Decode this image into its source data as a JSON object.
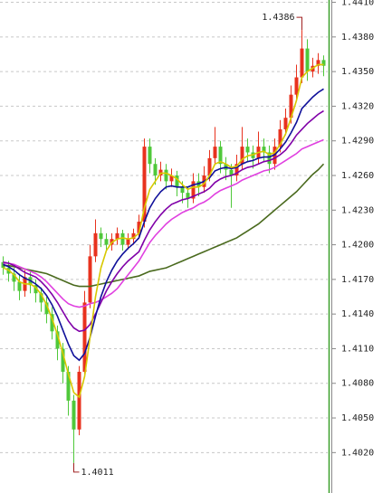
{
  "chart_data": {
    "type": "candlestick",
    "ylim": [
      1.3985,
      1.4412
    ],
    "yticks": [
      {
        "value": 1.441,
        "label": "1.4410"
      },
      {
        "value": 1.438,
        "label": "1.4380"
      },
      {
        "value": 1.435,
        "label": "1.4350"
      },
      {
        "value": 1.432,
        "label": "1.4320"
      },
      {
        "value": 1.429,
        "label": "1.4290"
      },
      {
        "value": 1.426,
        "label": "1.4260"
      },
      {
        "value": 1.423,
        "label": "1.4230"
      },
      {
        "value": 1.42,
        "label": "1.4200"
      },
      {
        "value": 1.417,
        "label": "1.4170"
      },
      {
        "value": 1.414,
        "label": "1.4140"
      },
      {
        "value": 1.411,
        "label": "1.4110"
      },
      {
        "value": 1.408,
        "label": "1.4080"
      },
      {
        "value": 1.405,
        "label": "1.4050"
      },
      {
        "value": 1.402,
        "label": "1.4020"
      }
    ],
    "grid": true,
    "up_color": "#e8321e",
    "down_color": "#4fc83a",
    "candles": {
      "open": [
        1.4185,
        1.418,
        1.4175,
        1.4168,
        1.416,
        1.4172,
        1.4165,
        1.4158,
        1.415,
        1.414,
        1.4125,
        1.411,
        1.409,
        1.4065,
        1.404,
        1.409,
        1.415,
        1.419,
        1.421,
        1.4205,
        1.42,
        1.4205,
        1.421,
        1.42,
        1.4205,
        1.421,
        1.422,
        1.4285,
        1.427,
        1.426,
        1.4265,
        1.4255,
        1.426,
        1.425,
        1.4245,
        1.424,
        1.4255,
        1.425,
        1.426,
        1.4275,
        1.4285,
        1.427,
        1.4265,
        1.426,
        1.427,
        1.4285,
        1.428,
        1.4275,
        1.4285,
        1.428,
        1.427,
        1.4285,
        1.43,
        1.431,
        1.433,
        1.4345,
        1.437,
        1.435,
        1.4355,
        1.436
      ],
      "high": [
        1.419,
        1.4186,
        1.418,
        1.4175,
        1.4178,
        1.4178,
        1.417,
        1.4163,
        1.4155,
        1.4146,
        1.413,
        1.4115,
        1.4095,
        1.407,
        1.4095,
        1.416,
        1.42,
        1.4222,
        1.4215,
        1.421,
        1.421,
        1.4215,
        1.4213,
        1.421,
        1.4214,
        1.4226,
        1.4292,
        1.4292,
        1.4275,
        1.4272,
        1.427,
        1.4266,
        1.4264,
        1.4255,
        1.425,
        1.4262,
        1.4262,
        1.4268,
        1.4282,
        1.4302,
        1.429,
        1.4276,
        1.427,
        1.4278,
        1.4302,
        1.4292,
        1.4286,
        1.4298,
        1.4292,
        1.4286,
        1.4292,
        1.4308,
        1.4318,
        1.4338,
        1.4356,
        1.4386,
        1.4378,
        1.4362,
        1.4366,
        1.4364
      ],
      "low": [
        1.4174,
        1.4168,
        1.416,
        1.4152,
        1.4155,
        1.4158,
        1.415,
        1.4142,
        1.4132,
        1.4118,
        1.41,
        1.408,
        1.4052,
        1.4011,
        1.4035,
        1.4085,
        1.4145,
        1.4185,
        1.4198,
        1.4195,
        1.4195,
        1.42,
        1.4195,
        1.4196,
        1.42,
        1.4205,
        1.4215,
        1.4262,
        1.4252,
        1.4255,
        1.4248,
        1.425,
        1.4242,
        1.4236,
        1.4232,
        1.4236,
        1.4242,
        1.4245,
        1.4255,
        1.427,
        1.4262,
        1.4256,
        1.4232,
        1.4255,
        1.4265,
        1.4272,
        1.4266,
        1.427,
        1.4272,
        1.4262,
        1.4265,
        1.428,
        1.4295,
        1.4305,
        1.4325,
        1.434,
        1.4342,
        1.4345,
        1.4348,
        1.4346
      ],
      "close": [
        1.418,
        1.4175,
        1.4168,
        1.416,
        1.4172,
        1.4165,
        1.4158,
        1.415,
        1.414,
        1.4125,
        1.411,
        1.409,
        1.4065,
        1.404,
        1.409,
        1.415,
        1.419,
        1.421,
        1.4205,
        1.42,
        1.4205,
        1.421,
        1.42,
        1.4205,
        1.421,
        1.422,
        1.4285,
        1.427,
        1.426,
        1.4265,
        1.4255,
        1.426,
        1.425,
        1.4245,
        1.424,
        1.4255,
        1.425,
        1.426,
        1.4275,
        1.4285,
        1.427,
        1.4265,
        1.426,
        1.427,
        1.4285,
        1.428,
        1.4275,
        1.4285,
        1.428,
        1.427,
        1.4285,
        1.43,
        1.431,
        1.433,
        1.4345,
        1.437,
        1.435,
        1.4355,
        1.436,
        1.4355
      ]
    },
    "lines": [
      {
        "color": "#4a6a1e",
        "values": [
          1.4182,
          1.4182,
          1.4181,
          1.418,
          1.4179,
          1.4178,
          1.4177,
          1.4176,
          1.4175,
          1.4173,
          1.4171,
          1.4169,
          1.4167,
          1.4165,
          1.4164,
          1.4164,
          1.4164,
          1.4165,
          1.4166,
          1.4167,
          1.4168,
          1.4169,
          1.417,
          1.4171,
          1.4172,
          1.4173,
          1.4175,
          1.4177,
          1.4178,
          1.4179,
          1.418,
          1.4182,
          1.4184,
          1.4186,
          1.4188,
          1.419,
          1.4192,
          1.4194,
          1.4196,
          1.4198,
          1.42,
          1.4202,
          1.4204,
          1.4206,
          1.4209,
          1.4212,
          1.4215,
          1.4218,
          1.4222,
          1.4226,
          1.423,
          1.4234,
          1.4238,
          1.4242,
          1.4246,
          1.4251,
          1.4256,
          1.4261,
          1.4265,
          1.427
        ]
      },
      {
        "color": "#e040e0",
        "values": [
          1.4184,
          1.4184,
          1.4183,
          1.4181,
          1.4179,
          1.4177,
          1.4175,
          1.4172,
          1.4168,
          1.4163,
          1.4158,
          1.4153,
          1.4149,
          1.4147,
          1.4146,
          1.4147,
          1.4149,
          1.415,
          1.4152,
          1.4155,
          1.4158,
          1.4162,
          1.4168,
          1.4174,
          1.418,
          1.4186,
          1.4194,
          1.4202,
          1.4208,
          1.4213,
          1.4218,
          1.4222,
          1.4225,
          1.4228,
          1.423,
          1.4232,
          1.4235,
          1.4237,
          1.424,
          1.4244,
          1.4247,
          1.4249,
          1.4251,
          1.4253,
          1.4256,
          1.4258,
          1.426,
          1.4262,
          1.4264,
          1.4265,
          1.4267,
          1.427,
          1.4273,
          1.4276,
          1.4279,
          1.4283,
          1.4285,
          1.4287,
          1.4289,
          1.4291
        ]
      },
      {
        "color": "#8000a8",
        "values": [
          1.4185,
          1.4184,
          1.4182,
          1.4179,
          1.4176,
          1.4174,
          1.4172,
          1.4168,
          1.4163,
          1.4157,
          1.415,
          1.4142,
          1.4134,
          1.4128,
          1.4125,
          1.4126,
          1.4131,
          1.414,
          1.415,
          1.416,
          1.4168,
          1.4175,
          1.4181,
          1.4186,
          1.419,
          1.4194,
          1.4204,
          1.4213,
          1.422,
          1.4226,
          1.4231,
          1.4235,
          1.4237,
          1.4239,
          1.424,
          1.4242,
          1.4244,
          1.4246,
          1.4249,
          1.4254,
          1.4257,
          1.4259,
          1.426,
          1.4262,
          1.4265,
          1.4267,
          1.4268,
          1.427,
          1.4272,
          1.4273,
          1.4275,
          1.4278,
          1.4282,
          1.4288,
          1.4295,
          1.43,
          1.4305,
          1.4309,
          1.4313,
          1.4316
        ]
      },
      {
        "color": "#10109a",
        "values": [
          1.4183,
          1.4181,
          1.4178,
          1.4174,
          1.4171,
          1.4169,
          1.4166,
          1.4162,
          1.4156,
          1.4148,
          1.4138,
          1.4126,
          1.4114,
          1.4104,
          1.41,
          1.4106,
          1.412,
          1.4138,
          1.4155,
          1.4168,
          1.4178,
          1.4186,
          1.4192,
          1.4197,
          1.4201,
          1.4206,
          1.422,
          1.4232,
          1.424,
          1.4246,
          1.425,
          1.4251,
          1.425,
          1.425,
          1.425,
          1.4252,
          1.4253,
          1.4255,
          1.4258,
          1.4264,
          1.4266,
          1.4267,
          1.4266,
          1.4267,
          1.427,
          1.4272,
          1.4273,
          1.4275,
          1.4276,
          1.4276,
          1.4278,
          1.4283,
          1.4289,
          1.4297,
          1.4306,
          1.4318,
          1.4323,
          1.4328,
          1.4332,
          1.4335
        ]
      },
      {
        "color": "#d8c800",
        "values": [
          1.418,
          1.4178,
          1.4174,
          1.4168,
          1.4166,
          1.4166,
          1.4163,
          1.4157,
          1.4148,
          1.4136,
          1.4122,
          1.4106,
          1.4088,
          1.4072,
          1.4068,
          1.4086,
          1.412,
          1.4155,
          1.418,
          1.4195,
          1.4202,
          1.4205,
          1.4206,
          1.4205,
          1.4206,
          1.421,
          1.4232,
          1.4248,
          1.4255,
          1.4262,
          1.4262,
          1.426,
          1.4257,
          1.4252,
          1.4248,
          1.425,
          1.425,
          1.4253,
          1.426,
          1.427,
          1.4272,
          1.427,
          1.4267,
          1.4268,
          1.4274,
          1.4277,
          1.4278,
          1.428,
          1.4281,
          1.4278,
          1.428,
          1.4287,
          1.4296,
          1.431,
          1.4325,
          1.4345,
          1.435,
          1.4353,
          1.4356,
          1.4356
        ]
      }
    ],
    "annotations": [
      {
        "value": 1.4386,
        "label": "1.4386"
      },
      {
        "value": 1.4011,
        "label": "1.4011"
      }
    ]
  }
}
